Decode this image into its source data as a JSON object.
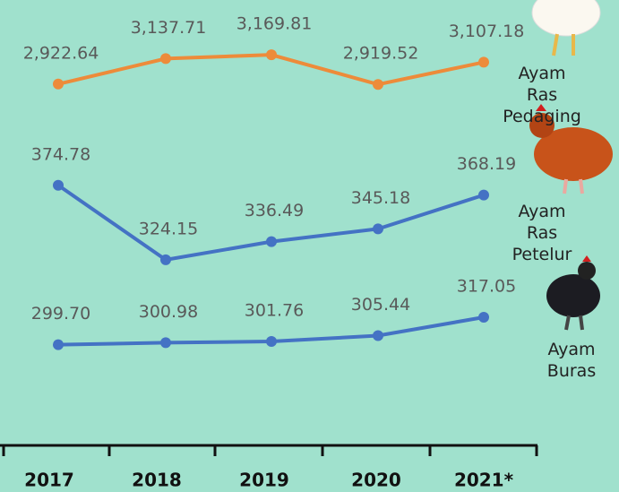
{
  "chart_data": {
    "type": "line",
    "categories": [
      "2017",
      "2018",
      "2019",
      "2020",
      "2021*"
    ],
    "series": [
      {
        "name": "Ayam Ras Pedaging",
        "color": "#ed8b3a",
        "ylim": [
          2800,
          3330
        ],
        "values": [
          2922.64,
          3137.71,
          3169.81,
          2919.52,
          3107.18
        ],
        "value_labels": [
          "2,922.64",
          "3,137.71",
          "3,169.81",
          "2,919.52",
          "3,107.18"
        ]
      },
      {
        "name": "Ayam Ras Petelur",
        "color": "#4472c4",
        "ylim": [
          318,
          385
        ],
        "values": [
          374.78,
          324.15,
          336.49,
          345.18,
          368.19
        ],
        "value_labels": [
          "374.78",
          "324.15",
          "336.49",
          "345.18",
          "368.19"
        ]
      },
      {
        "name": "Ayam Buras",
        "color": "#4472c4",
        "ylim": [
          291,
          325
        ],
        "values": [
          299.7,
          300.98,
          301.76,
          305.44,
          317.05
        ],
        "value_labels": [
          "299.70",
          "300.98",
          "301.76",
          "305.44",
          "317.05"
        ]
      }
    ]
  }
}
